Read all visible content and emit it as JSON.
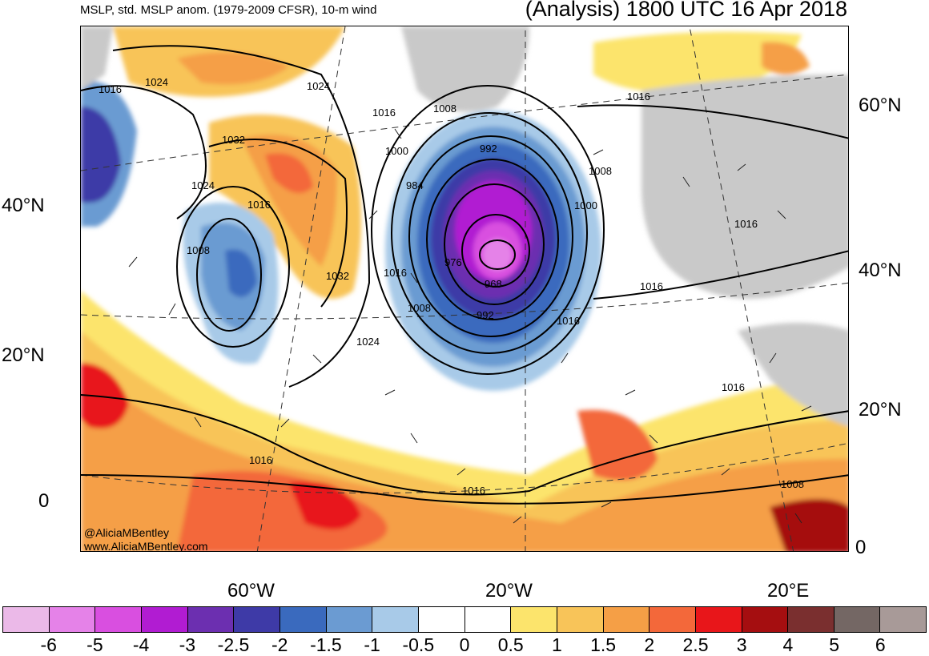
{
  "header": {
    "title_left": "MSLP, std. MSLP anom. (1979-2009 CFSR), 10-m wind",
    "title_right": "(Analysis) 1800 UTC 16 Apr 2018"
  },
  "credit": {
    "handle": "@AliciaMBentley",
    "website": "www.AliciaMBentley.com"
  },
  "axes": {
    "left_lat_labels": [
      "40°N",
      "20°N",
      "0"
    ],
    "right_lat_labels": [
      "60°N",
      "40°N",
      "20°N",
      "0"
    ],
    "lon_labels": [
      "60°W",
      "20°W",
      "20°E"
    ]
  },
  "contour_labels": [
    "1016",
    "1024",
    "1024",
    "1032",
    "1024",
    "1016",
    "1008",
    "1032",
    "1016",
    "1024",
    "1016",
    "1008",
    "1000",
    "992",
    "984",
    "976",
    "968",
    "992",
    "1008",
    "1008",
    "1000",
    "1016",
    "1016",
    "1016",
    "1016",
    "1016",
    "1016",
    "1016",
    "1008"
  ],
  "colorbar": {
    "colors": [
      "#ebb9e8",
      "#e582e8",
      "#d94fe0",
      "#b11cd2",
      "#6c2fb0",
      "#3e3aa7",
      "#3a6abe",
      "#6b9bd2",
      "#a8cae8",
      "#ffffff",
      "#ffffff",
      "#fce46c",
      "#f8c459",
      "#f59f46",
      "#f3683a",
      "#e8161a",
      "#a50e10",
      "#7a2f2f",
      "#746764",
      "#a89a98"
    ],
    "tick_labels": [
      "-6",
      "-5",
      "-4",
      "-3",
      "-2.5",
      "-2",
      "-1.5",
      "-1",
      "-0.5",
      "0",
      "0.5",
      "1",
      "1.5",
      "2",
      "2.5",
      "3",
      "4",
      "5",
      "6"
    ]
  }
}
